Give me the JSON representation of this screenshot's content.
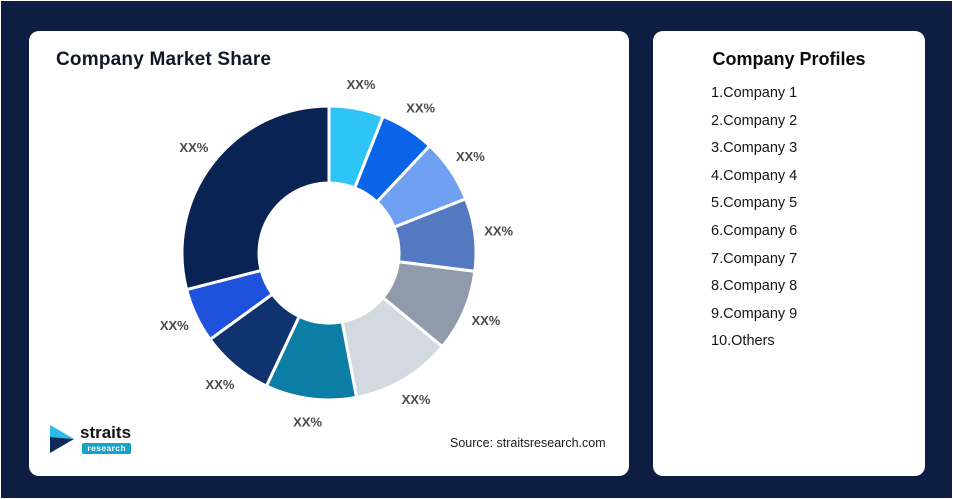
{
  "left_card": {
    "title": "Company Market Share",
    "source": "Source: straitsresearch.com",
    "logo": {
      "name": "straits",
      "sub": "research"
    }
  },
  "right_card": {
    "title": "Company Profiles",
    "items": [
      "1.Company 1",
      "2.Company 2",
      "3.Company 3",
      "4.Company 4",
      "5.Company 5",
      "6.Company 6",
      "7.Company 7",
      "8.Company 8",
      "9.Company 9",
      "10.Others"
    ]
  },
  "chart_data": {
    "type": "pie",
    "subtype": "donut",
    "title": "Company Market Share",
    "direction": "clockwise",
    "start_angle_deg": 0,
    "inner_radius_ratio": 0.48,
    "legend_position": "none",
    "segments": [
      {
        "name": "Company 1",
        "label": "XX%",
        "value": 6,
        "color": "#2EC5F6"
      },
      {
        "name": "Company 2",
        "label": "XX%",
        "value": 6,
        "color": "#0A64E8"
      },
      {
        "name": "Company 3",
        "label": "XX%",
        "value": 7,
        "color": "#6FA0F2"
      },
      {
        "name": "Company 4",
        "label": "XX%",
        "value": 8,
        "color": "#5579C0"
      },
      {
        "name": "Company 5",
        "label": "XX%",
        "value": 9,
        "color": "#8F9AAB"
      },
      {
        "name": "Company 6",
        "label": "XX%",
        "value": 11,
        "color": "#D3D9E0"
      },
      {
        "name": "Company 7",
        "label": "XX%",
        "value": 10,
        "color": "#0C7EA6"
      },
      {
        "name": "Company 8",
        "label": "XX%",
        "value": 8,
        "color": "#10336F"
      },
      {
        "name": "Company 9",
        "label": "XX%",
        "value": 6,
        "color": "#1F52DC"
      },
      {
        "name": "Others",
        "label": "XX%",
        "value": 29,
        "color": "#0A2355"
      }
    ]
  },
  "colors": {
    "background": "#0E1D42",
    "card": "#FFFFFF",
    "title": "#101828",
    "slice_label": "#4A4A4A",
    "accent_teal": "#17A3C9"
  }
}
